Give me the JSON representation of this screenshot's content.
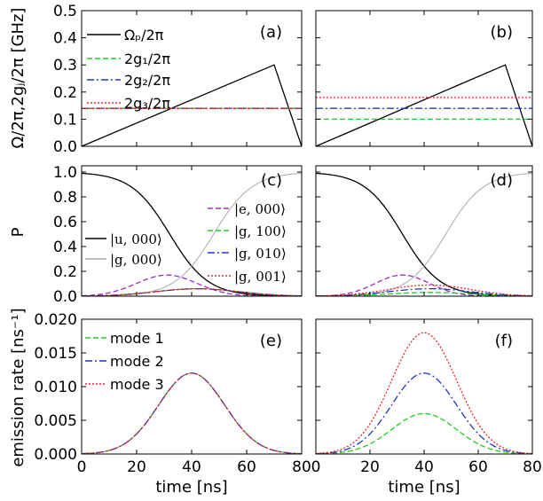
{
  "chart_data": [
    {
      "id": "a",
      "panel_label": "(a)",
      "type": "line",
      "xlim": [
        0,
        80
      ],
      "ylim": [
        0,
        0.5
      ],
      "yticks": [
        "0.0",
        "0.1",
        "0.2",
        "0.3",
        "0.4",
        "0.5"
      ],
      "ylabel": "Ω/2π,2gⱼ/2π [GHz]",
      "series": [
        {
          "name": "Ω_P/2π",
          "legend": "Ωₚ/2π",
          "color": "#000000",
          "dash": "solid",
          "x": [
            0,
            70,
            80
          ],
          "y": [
            0,
            0.3,
            0
          ]
        },
        {
          "name": "2g1/2π",
          "legend": "2g₁/2π",
          "color": "#22cc22",
          "dash": "dashed",
          "x": [
            0,
            80
          ],
          "y": [
            0.14,
            0.14
          ]
        },
        {
          "name": "2g2/2π",
          "legend": "2g₂/2π",
          "color": "#2233cc",
          "dash": "dashdot",
          "x": [
            0,
            80
          ],
          "y": [
            0.14,
            0.14
          ]
        },
        {
          "name": "2g3/2π",
          "legend": "2g₃/2π",
          "color": "#ee2222",
          "dash": "dotted",
          "x": [
            0,
            80
          ],
          "y": [
            0.14,
            0.14
          ]
        }
      ]
    },
    {
      "id": "b",
      "panel_label": "(b)",
      "type": "line",
      "xlim": [
        0,
        80
      ],
      "ylim": [
        0,
        0.5
      ],
      "series": [
        {
          "name": "Ω_P/2π",
          "color": "#000000",
          "dash": "solid",
          "x": [
            0,
            70,
            80
          ],
          "y": [
            0,
            0.3,
            0
          ]
        },
        {
          "name": "2g1/2π",
          "color": "#22cc22",
          "dash": "dashed",
          "x": [
            0,
            80
          ],
          "y": [
            0.1,
            0.1
          ]
        },
        {
          "name": "2g2/2π",
          "color": "#2233cc",
          "dash": "dashdot",
          "x": [
            0,
            80
          ],
          "y": [
            0.14,
            0.14
          ]
        },
        {
          "name": "2g3/2π",
          "color": "#ee2222",
          "dash": "dotted",
          "x": [
            0,
            80
          ],
          "y": [
            0.18,
            0.18
          ]
        }
      ]
    },
    {
      "id": "c",
      "panel_label": "(c)",
      "type": "line",
      "xlim": [
        0,
        80
      ],
      "ylim": [
        0,
        1.05
      ],
      "yticks": [
        "0.0",
        "0.2",
        "0.4",
        "0.6",
        "0.8",
        "1.0"
      ],
      "ylabel": "P",
      "series": [
        {
          "name": "|u,000>",
          "legend": "|u, 000⟩",
          "color": "#000000",
          "dash": "solid",
          "model": "fall",
          "center": 32,
          "width": 7
        },
        {
          "name": "|g,000>",
          "legend": "|g, 000⟩",
          "color": "#aaaaaa",
          "dash": "solid",
          "model": "rise",
          "center": 48,
          "width": 7
        },
        {
          "name": "|e,000>",
          "legend": "|e, 000⟩",
          "color": "#9933bb",
          "dash": "dashed",
          "model": "bump",
          "peak": 0.17,
          "center": 31,
          "width": 11
        },
        {
          "name": "|g,100>",
          "legend": "|g, 100⟩",
          "color": "#22cc22",
          "dash": "dashed",
          "model": "bump",
          "peak": 0.06,
          "center": 42,
          "width": 15
        },
        {
          "name": "|g,010>",
          "legend": "|g, 010⟩",
          "color": "#2233cc",
          "dash": "dashdot",
          "model": "bump",
          "peak": 0.06,
          "center": 42,
          "width": 15
        },
        {
          "name": "|g,001>",
          "legend": "|g, 001⟩",
          "color": "#ee2222",
          "dash": "dotted",
          "model": "bump",
          "peak": 0.06,
          "center": 42,
          "width": 15
        }
      ]
    },
    {
      "id": "d",
      "panel_label": "(d)",
      "type": "line",
      "xlim": [
        0,
        80
      ],
      "ylim": [
        0,
        1.05
      ],
      "series": [
        {
          "name": "|u,000>",
          "color": "#000000",
          "dash": "solid",
          "model": "fall",
          "center": 32,
          "width": 7
        },
        {
          "name": "|g,000>",
          "color": "#aaaaaa",
          "dash": "solid",
          "model": "rise",
          "center": 48,
          "width": 7
        },
        {
          "name": "|e,000>",
          "color": "#9933bb",
          "dash": "dashed",
          "model": "bump",
          "peak": 0.17,
          "center": 32,
          "width": 10
        },
        {
          "name": "|g,100>",
          "color": "#22cc22",
          "dash": "dashed",
          "model": "bump",
          "peak": 0.03,
          "center": 42,
          "width": 15
        },
        {
          "name": "|g,010>",
          "color": "#2233cc",
          "dash": "dashdot",
          "model": "bump",
          "peak": 0.06,
          "center": 42,
          "width": 15
        },
        {
          "name": "|g,001>",
          "color": "#ee2222",
          "dash": "dotted",
          "model": "bump",
          "peak": 0.09,
          "center": 42,
          "width": 15
        }
      ]
    },
    {
      "id": "e",
      "panel_label": "(e)",
      "type": "line",
      "xlim": [
        0,
        80
      ],
      "ylim": [
        0,
        0.02
      ],
      "xticks": [
        "0",
        "20",
        "40",
        "60",
        "80"
      ],
      "yticks": [
        "0.000",
        "0.005",
        "0.010",
        "0.015",
        "0.020"
      ],
      "xlabel": "time [ns]",
      "ylabel": "emission rate [ns⁻¹]",
      "series": [
        {
          "name": "mode 1",
          "legend": "mode 1",
          "color": "#22cc22",
          "dash": "dashed",
          "model": "bump",
          "peak": 0.012,
          "center": 40,
          "width": 12
        },
        {
          "name": "mode 2",
          "legend": "mode 2",
          "color": "#2233cc",
          "dash": "dashdot",
          "model": "bump",
          "peak": 0.012,
          "center": 40,
          "width": 12
        },
        {
          "name": "mode 3",
          "legend": "mode 3",
          "color": "#ee2222",
          "dash": "dotted",
          "model": "bump",
          "peak": 0.012,
          "center": 40,
          "width": 12
        }
      ]
    },
    {
      "id": "f",
      "panel_label": "(f)",
      "type": "line",
      "xlim": [
        0,
        80
      ],
      "ylim": [
        0,
        0.02
      ],
      "xticks": [
        "0",
        "20",
        "40",
        "60",
        "80"
      ],
      "xlabel": "time [ns]",
      "series": [
        {
          "name": "mode 1",
          "color": "#22cc22",
          "dash": "dashed",
          "model": "bump",
          "peak": 0.006,
          "center": 40,
          "width": 12
        },
        {
          "name": "mode 2",
          "color": "#2233cc",
          "dash": "dashdot",
          "model": "bump",
          "peak": 0.012,
          "center": 40,
          "width": 12
        },
        {
          "name": "mode 3",
          "color": "#ee2222",
          "dash": "dotted",
          "model": "bump",
          "peak": 0.018,
          "center": 40,
          "width": 12
        }
      ]
    }
  ]
}
